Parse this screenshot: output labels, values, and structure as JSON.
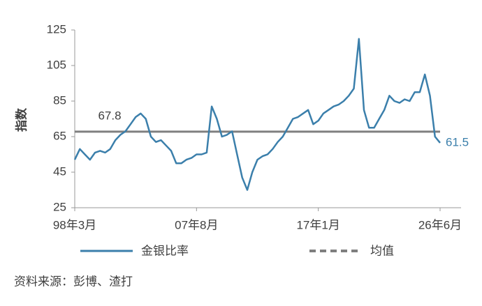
{
  "chart_data": {
    "type": "line",
    "ylabel": "指数",
    "categories": [
      "98年3月",
      null,
      null,
      null,
      null,
      null,
      null,
      null,
      null,
      null,
      null,
      null,
      null,
      null,
      null,
      null,
      null,
      null,
      null,
      null,
      null,
      null,
      null,
      null,
      "07年8月",
      null,
      null,
      null,
      null,
      null,
      null,
      null,
      null,
      null,
      null,
      null,
      null,
      null,
      null,
      null,
      null,
      null,
      null,
      null,
      null,
      null,
      null,
      null,
      "17年1月",
      null,
      null,
      null,
      null,
      null,
      null,
      null,
      null,
      null,
      null,
      null,
      null,
      null,
      null,
      null,
      null,
      null,
      null,
      null,
      null,
      null,
      null,
      null,
      "26年6月"
    ],
    "series": [
      {
        "name": "金银比率",
        "color": "#3b7fab",
        "values": [
          52,
          58,
          55,
          52,
          56,
          57,
          56,
          58,
          63,
          66,
          68,
          72,
          76,
          78,
          75,
          65,
          62,
          63,
          60,
          57,
          50,
          50,
          52,
          53,
          55,
          55,
          56,
          82,
          75,
          65,
          66,
          68,
          55,
          42,
          35,
          45,
          52,
          54,
          55,
          58,
          62,
          65,
          70,
          75,
          76,
          78,
          80,
          72,
          74,
          78,
          80,
          82,
          83,
          85,
          88,
          92,
          120,
          80,
          70,
          70,
          75,
          80,
          88,
          85,
          84,
          86,
          85,
          90,
          90,
          100,
          88,
          65,
          61.5
        ]
      }
    ],
    "mean": {
      "name": "均值",
      "value": 67.8,
      "color": "#7f7f7f"
    },
    "ylim": [
      25,
      125
    ],
    "yticks": [
      25,
      45,
      65,
      85,
      105,
      125
    ],
    "source": "资料来源：彭博、渣打"
  }
}
